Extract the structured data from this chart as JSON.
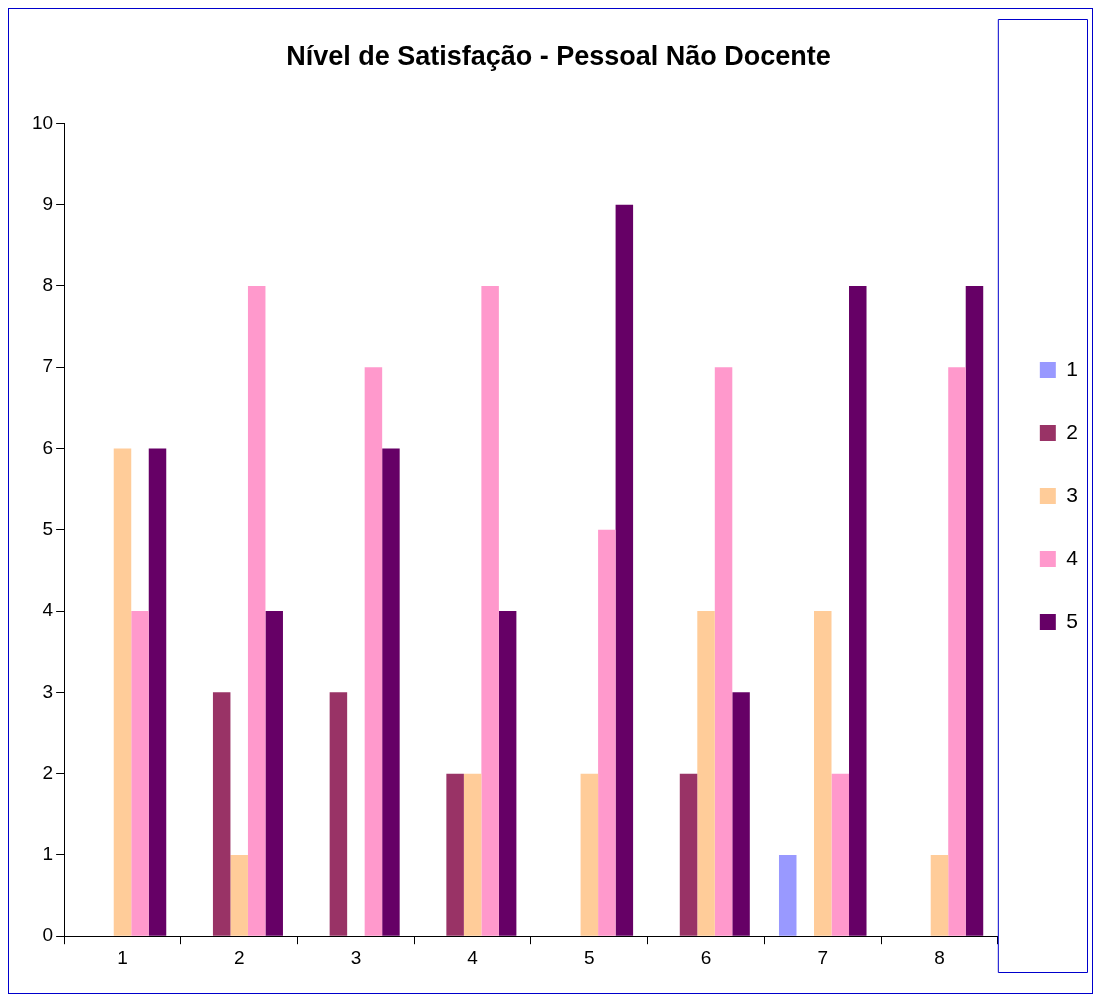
{
  "chart_data": {
    "type": "bar",
    "title": "Nível de Satisfação - Pessoal Não Docente",
    "categories": [
      "1",
      "2",
      "3",
      "4",
      "5",
      "6",
      "7",
      "8"
    ],
    "series": [
      {
        "name": "1",
        "color": "#9999ff",
        "values": [
          0,
          0,
          0,
          0,
          0,
          0,
          1,
          0
        ]
      },
      {
        "name": "2",
        "color": "#993366",
        "values": [
          0,
          3,
          3,
          2,
          0,
          2,
          0,
          0
        ]
      },
      {
        "name": "3",
        "color": "#ffcc99",
        "values": [
          6,
          1,
          0,
          2,
          2,
          4,
          4,
          1
        ]
      },
      {
        "name": "4",
        "color": "#ff99cc",
        "values": [
          4,
          8,
          7,
          8,
          5,
          7,
          2,
          7
        ]
      },
      {
        "name": "5",
        "color": "#660066",
        "values": [
          6,
          4,
          6,
          4,
          9,
          3,
          8,
          8
        ]
      }
    ],
    "ylim": [
      0,
      10
    ],
    "yticks": [
      0,
      1,
      2,
      3,
      4,
      5,
      6,
      7,
      8,
      9,
      10
    ],
    "grid": false,
    "legend": "right"
  }
}
